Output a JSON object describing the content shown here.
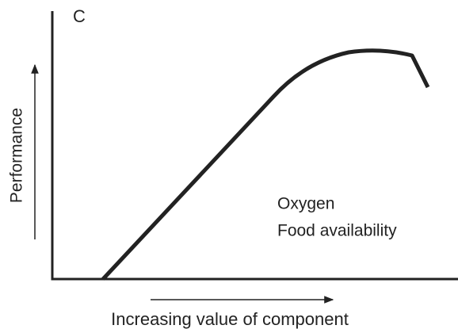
{
  "panel_label": "C",
  "y_axis_label": "Performance",
  "x_axis_label": "Increasing value of component",
  "annotations": [
    "Oxygen",
    "Food availability"
  ]
}
